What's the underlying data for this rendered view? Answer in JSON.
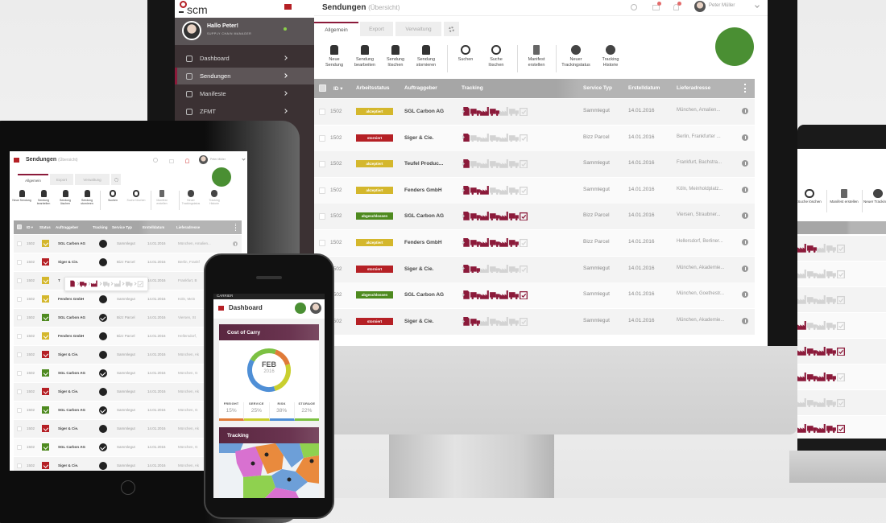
{
  "status_colors": {
    "akzeptiert": "#d4b72c",
    "storniert": "#b52025",
    "abgeschlossen": "#4e8a1f"
  },
  "accent_color": "#8b1a3a",
  "tracking_steps": [
    "document-icon",
    "truck-icon",
    "factory-icon",
    "truck-icon",
    "factory-icon",
    "truck-icon",
    "clipboard-check-icon"
  ],
  "app": {
    "logo": "scm",
    "user": {
      "greeting": "Hallo Peter!",
      "role": "SUPPLY CHAIN MANAGER",
      "name": "Peter Müller"
    },
    "sidebar": [
      {
        "label": "Dashboard",
        "icon": "dashboard-icon"
      },
      {
        "label": "Sendungen",
        "icon": "users-icon",
        "active": true
      },
      {
        "label": "Manifeste",
        "icon": "folder-icon"
      },
      {
        "label": "ZFMT",
        "icon": "grid-icon"
      }
    ],
    "page_title": "Sendungen",
    "page_subtitle": "(Übersicht)",
    "tabs": [
      "Allgemein",
      "Export",
      "Verwaltung"
    ],
    "toolbar": [
      {
        "label": "Neue Sendung",
        "icon": "add-shipment-icon"
      },
      {
        "label": "Sendung bearbeiten",
        "icon": "edit-shipment-icon"
      },
      {
        "label": "Sendung löschen",
        "icon": "delete-shipment-icon"
      },
      {
        "label": "Sendung stornieren",
        "icon": "cancel-shipment-icon"
      },
      {
        "label": "Suchen",
        "icon": "search-icon"
      },
      {
        "label": "Suche löschen",
        "icon": "clear-search-icon"
      },
      {
        "label": "Manifest erstellen",
        "icon": "manifest-icon"
      },
      {
        "label": "Neuer Trackingstatus",
        "icon": "plus-circle-icon"
      },
      {
        "label": "Tracking Historie",
        "icon": "history-icon"
      }
    ],
    "columns": [
      "ID ▾",
      "Arbeitsstatus",
      "Auftraggeber",
      "Tracking",
      "Service Typ",
      "Erstelldatum",
      "Lieferadresse"
    ],
    "rows": [
      {
        "id": "1502",
        "status": "akzeptiert",
        "client": "SGL Carbon AG",
        "progress": 4,
        "service": "Sammlegut",
        "date": "14.01.2016",
        "address": "München, Amalien..."
      },
      {
        "id": "1502",
        "status": "storniert",
        "client": "Siger & Cie.",
        "progress": 1,
        "service": "Bizz Parcel",
        "date": "14.01.2016",
        "address": "Berlin, Frankfurter ..."
      },
      {
        "id": "1502",
        "status": "akzeptiert",
        "client": "Teufel Produc...",
        "progress": 1,
        "service": "Sammlegut",
        "date": "14.01.2016",
        "address": "Frankfurt, Bachstra..."
      },
      {
        "id": "1502",
        "status": "akzeptiert",
        "client": "Fenders GmbH",
        "progress": 3,
        "service": "Sammlegut",
        "date": "14.01.2016",
        "address": "Köln, Meinholdplatz..."
      },
      {
        "id": "1502",
        "status": "abgeschlossen",
        "client": "SGL Carbon AG",
        "progress": 7,
        "service": "Bizz Parcel",
        "date": "14.01.2016",
        "address": "Viersen, Straubner..."
      },
      {
        "id": "1502",
        "status": "akzeptiert",
        "client": "Fenders GmbH",
        "progress": 6,
        "service": "Bizz Parcel",
        "date": "14.01.2016",
        "address": "Hellersdorf, Berliner..."
      },
      {
        "id": "1502",
        "status": "storniert",
        "client": "Siger & Cie.",
        "progress": 2,
        "service": "Sammlegut",
        "date": "14.01.2016",
        "address": "München, Akademie..."
      },
      {
        "id": "1502",
        "status": "abgeschlossen",
        "client": "SGL Carbon AG",
        "progress": 7,
        "service": "Sammlegut",
        "date": "14.01.2016",
        "address": "München, Goethestr..."
      },
      {
        "id": "1502",
        "status": "storniert",
        "client": "Siger & Cie.",
        "progress": 2,
        "service": "Sammlegut",
        "date": "14.01.2016",
        "address": "München, Akademie..."
      }
    ]
  },
  "tablet": {
    "columns": [
      "ID ▾",
      "Status",
      "Auftraggeber",
      "Tracking",
      "Service Typ",
      "Erstelldatum",
      "Lieferadresse"
    ],
    "tooltip_progress": 3,
    "rows": [
      {
        "id": "1502",
        "status": "akzeptiert",
        "client": "SGL Carbon AG",
        "done": false,
        "service": "Sammlegut",
        "date": "14.01.2016",
        "address": "München, Amalien..."
      },
      {
        "id": "1502",
        "status": "storniert",
        "client": "Siger & Cie.",
        "done": false,
        "service": "Bizz Parcel",
        "date": "14.01.2016",
        "address": "Berlin, Frankf"
      },
      {
        "id": "1502",
        "status": "akzeptiert",
        "client": "T",
        "done": false,
        "service": "",
        "date": "14.01.2016",
        "address": "Frankfurt, B"
      },
      {
        "id": "1502",
        "status": "akzeptiert",
        "client": "Fenders GmbH",
        "done": false,
        "service": "Sammlegut",
        "date": "14.01.2016",
        "address": "Köln, Mein"
      },
      {
        "id": "1502",
        "status": "abgeschlossen",
        "client": "SGL Carbon AG",
        "done": true,
        "service": "Bizz Parcel",
        "date": "14.01.2016",
        "address": "Viersen, St"
      },
      {
        "id": "1502",
        "status": "akzeptiert",
        "client": "Fenders GmbH",
        "done": false,
        "service": "Bizz Parcel",
        "date": "14.01.2016",
        "address": "Hellersdorf,"
      },
      {
        "id": "1502",
        "status": "storniert",
        "client": "Siger & Cie.",
        "done": false,
        "service": "Sammlegut",
        "date": "14.01.2016",
        "address": "München, Ak"
      },
      {
        "id": "1502",
        "status": "abgeschlossen",
        "client": "SGL Carbon AG",
        "done": true,
        "service": "Sammlegut",
        "date": "14.01.2016",
        "address": "München, G"
      },
      {
        "id": "1502",
        "status": "storniert",
        "client": "Siger & Cie.",
        "done": false,
        "service": "Sammlegut",
        "date": "14.01.2016",
        "address": "München, Ak"
      },
      {
        "id": "1502",
        "status": "abgeschlossen",
        "client": "SGL Carbon AG",
        "done": true,
        "service": "Sammlegut",
        "date": "14.01.2016",
        "address": "München, G"
      },
      {
        "id": "1502",
        "status": "storniert",
        "client": "Siger & Cie.",
        "done": false,
        "service": "Sammlegut",
        "date": "14.01.2016",
        "address": "München, Ak"
      },
      {
        "id": "1502",
        "status": "abgeschlossen",
        "client": "SGL Carbon AG",
        "done": true,
        "service": "Sammlegut",
        "date": "14.01.2016",
        "address": "München, G"
      },
      {
        "id": "1502",
        "status": "storniert",
        "client": "Siger & Cie.",
        "done": false,
        "service": "Sammlegut",
        "date": "14.01.2016",
        "address": "München, Ak"
      }
    ]
  },
  "phone": {
    "carrier": "CARRIER",
    "title": "Dashboard",
    "cost_card": {
      "title": "Cost of Carry",
      "month": "FEB",
      "year": "2016",
      "segments": [
        {
          "label": "FREIGHT",
          "value": "15%",
          "pct": 15,
          "color": "#e07b39"
        },
        {
          "label": "SERVICE",
          "value": "25%",
          "pct": 25,
          "color": "#c9cf2e"
        },
        {
          "label": "RISK",
          "value": "38%",
          "pct": 38,
          "color": "#4f8fd6"
        },
        {
          "label": "STORAGE",
          "value": "22%",
          "pct": 22,
          "color": "#7cc142"
        }
      ]
    },
    "tracking_card": {
      "title": "Tracking"
    }
  }
}
